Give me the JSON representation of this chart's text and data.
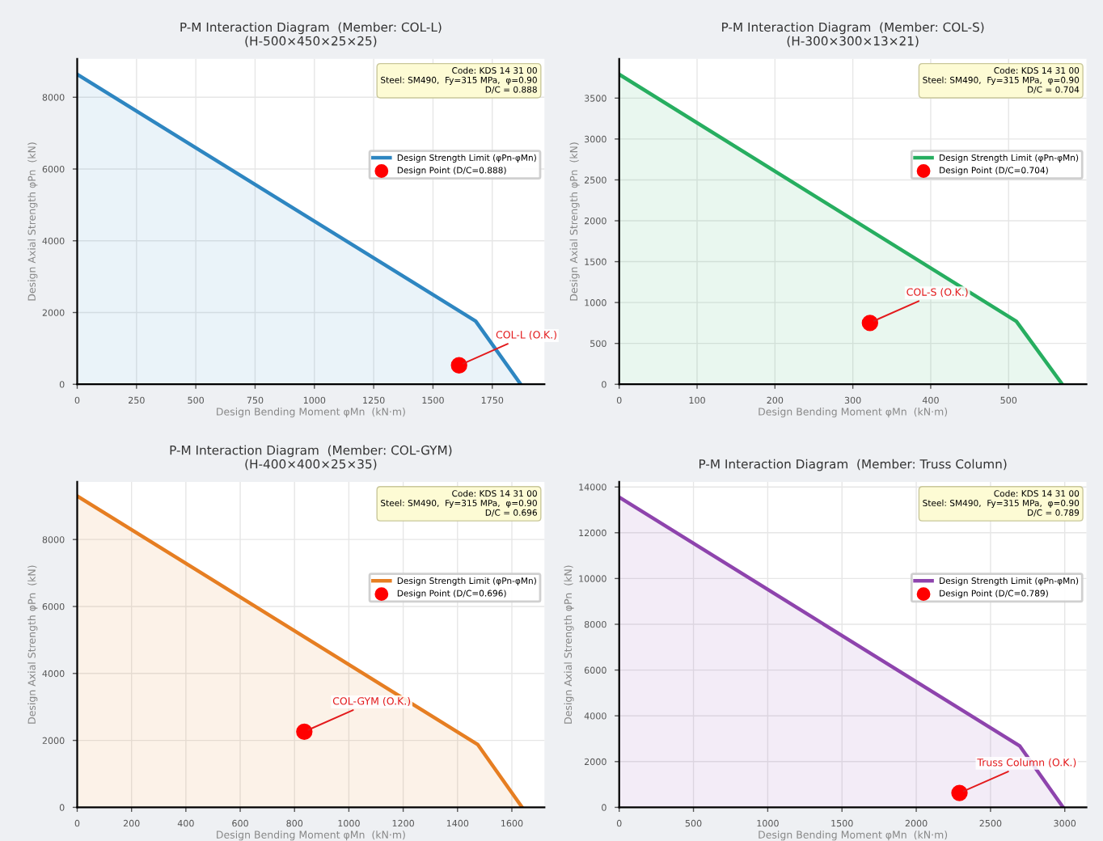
{
  "chart_data": [
    {
      "type": "area",
      "title": "P-M Interaction Diagram  (Member: COL-L)\n(H-500×450×25×25)",
      "xlabel": "Design Bending Moment φMn  (kN·m)",
      "ylabel": "Design Axial Strength φPn  (kN)",
      "xlim": [
        0,
        1970
      ],
      "xticks": [
        0,
        250,
        500,
        750,
        1000,
        1250,
        1500,
        1750
      ],
      "ylim": [
        0,
        9070
      ],
      "yticks": [
        0,
        2000,
        4000,
        6000,
        8000
      ],
      "grid": true,
      "legend": "right",
      "series": [
        {
          "name": "Design Strength Limit (φPn-φMn)",
          "color": "#2e86c1",
          "x": [
            0,
            1680,
            1870
          ],
          "values": [
            8640,
            1760,
            0
          ]
        },
        {
          "name": "Design Point (D/C=0.888)",
          "type": "scatter",
          "color": "#ff0000",
          "marker": "circle",
          "x": [
            1610
          ],
          "values": [
            530
          ]
        }
      ],
      "annotations": [
        {
          "text": "COL-L (O.K.)",
          "x": 1610,
          "y": 529
        },
        "Code: KDS 14 31 00\nSteel: SM490,  Fy=315 MPa,  φ=0.90\nD/C = 0.888"
      ]
    },
    {
      "type": "area",
      "title": "P-M Interaction Diagram  (Member: COL-S)\n(H-300×300×13×21)",
      "xlabel": "Design Bending Moment φMn  (kN·m)",
      "ylabel": "Design Axial Strength φPn  (kN)",
      "xlim": [
        0,
        600
      ],
      "xticks": [
        0,
        100,
        200,
        300,
        400,
        500
      ],
      "ylim": [
        0,
        3980
      ],
      "yticks": [
        0,
        500,
        1000,
        1500,
        2000,
        2500,
        3000,
        3500
      ],
      "grid": true,
      "legend": "right",
      "series": [
        {
          "name": "Design Strength Limit (φPn-φMn)",
          "color": "#27ae60",
          "x": [
            0,
            510,
            569
          ],
          "values": [
            3790,
            770,
            0
          ]
        },
        {
          "name": "Design Point (D/C=0.704)",
          "type": "scatter",
          "color": "#ff0000",
          "marker": "circle",
          "x": [
            322
          ],
          "values": [
            750
          ]
        }
      ],
      "annotations": [
        {
          "text": "COL-S (O.K.)",
          "x": 322,
          "y": 754
        },
        "Code: KDS 14 31 00\nSteel: SM490,  Fy=315 MPa,  φ=0.90\nD/C = 0.704"
      ]
    },
    {
      "type": "area",
      "title": "P-M Interaction Diagram  (Member: COL-GYM)\n(H-400×400×25×35)",
      "xlabel": "Design Bending Moment φMn  (kN·m)",
      "ylabel": "Design Axial Strength φPn  (kN)",
      "xlim": [
        0,
        1720
      ],
      "xticks": [
        0,
        200,
        400,
        600,
        800,
        1000,
        1200,
        1400,
        1600
      ],
      "ylim": [
        0,
        9720
      ],
      "yticks": [
        0,
        2000,
        4000,
        6000,
        8000
      ],
      "grid": true,
      "legend": "right",
      "series": [
        {
          "name": "Design Strength Limit (φPn-φMn)",
          "color": "#e67e22",
          "x": [
            0,
            1474,
            1638
          ],
          "values": [
            9300,
            1880,
            0
          ]
        },
        {
          "name": "Design Point (D/C=0.696)",
          "type": "scatter",
          "color": "#ff0000",
          "marker": "circle",
          "x": [
            836
          ],
          "values": [
            2260
          ]
        }
      ],
      "annotations": [
        {
          "text": "COL-GYM (O.K.)",
          "x": 836,
          "y": 2262
        },
        "Code: KDS 14 31 00\nSteel: SM490,  Fy=315 MPa,  φ=0.90\nD/C = 0.696"
      ]
    },
    {
      "type": "area",
      "title": "P-M Interaction Diagram  (Member: Truss Column)",
      "xlabel": "Design Bending Moment φMn  (kN·m)",
      "ylabel": "Design Axial Strength φPn  (kN)",
      "xlim": [
        0,
        3146
      ],
      "xticks": [
        0,
        500,
        1000,
        1500,
        2000,
        2500,
        3000
      ],
      "ylim": [
        0,
        14220
      ],
      "yticks": [
        0,
        2000,
        4000,
        6000,
        8000,
        10000,
        12000,
        14000
      ],
      "grid": true,
      "legend": "right",
      "series": [
        {
          "name": "Design Strength Limit (φPn-φMn)",
          "color": "#8e44ad",
          "x": [
            0,
            2696,
            2989
          ],
          "values": [
            13550,
            2690,
            0
          ]
        },
        {
          "name": "Design Point (D/C=0.789)",
          "type": "scatter",
          "color": "#ff0000",
          "marker": "circle",
          "x": [
            2291
          ],
          "values": [
            630
          ]
        }
      ],
      "annotations": [
        {
          "text": "Truss Column (O.K.)",
          "x": 2291,
          "y": 627
        },
        "Code: KDS 14 31 00\nSteel: SM490,  Fy=315 MPa,  φ=0.90\nD/C = 0.789"
      ]
    }
  ]
}
